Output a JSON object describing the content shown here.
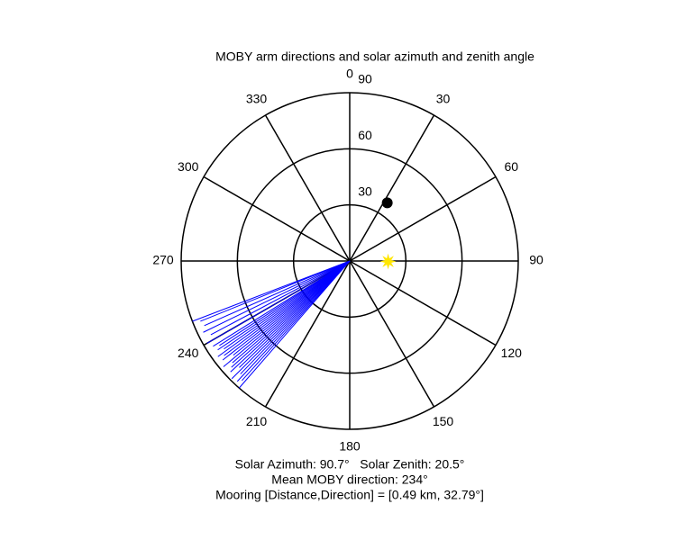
{
  "chart_data": {
    "type": "polar",
    "title": "MOBY arm directions and solar azimuth and zenith angle",
    "rlim": [
      0,
      90
    ],
    "rticks": [
      30,
      60,
      90
    ],
    "thetaticks": [
      0,
      30,
      60,
      90,
      120,
      150,
      180,
      210,
      240,
      270,
      300,
      330
    ],
    "series": [
      {
        "name": "MOBY arm directions",
        "kind": "line",
        "color": "#0000ff",
        "theta": [
          221,
          222,
          223,
          224,
          225,
          226,
          227,
          228,
          229,
          230,
          231,
          232,
          233,
          234,
          235,
          236,
          237,
          238,
          240,
          242,
          244,
          246,
          248,
          249
        ],
        "r": [
          90,
          86,
          88,
          84,
          89,
          82,
          87,
          85,
          83,
          88,
          80,
          86,
          84,
          87,
          82,
          85,
          83,
          86,
          88,
          84,
          87,
          85,
          86,
          90
        ]
      },
      {
        "name": "Solar position",
        "kind": "star",
        "color": "#ffe600",
        "theta": [
          90.7
        ],
        "r": [
          20.5
        ]
      },
      {
        "name": "Mooring",
        "kind": "dot",
        "color": "#000000",
        "theta": [
          32.79
        ],
        "r": [
          37
        ]
      }
    ],
    "annotations": [
      "Solar Azimuth: 90.7°   Solar Zenith: 20.5°",
      "Mean MOBY direction: 234°",
      "Mooring [Distance,Direction] = [0.49 km, 32.79°]"
    ]
  }
}
